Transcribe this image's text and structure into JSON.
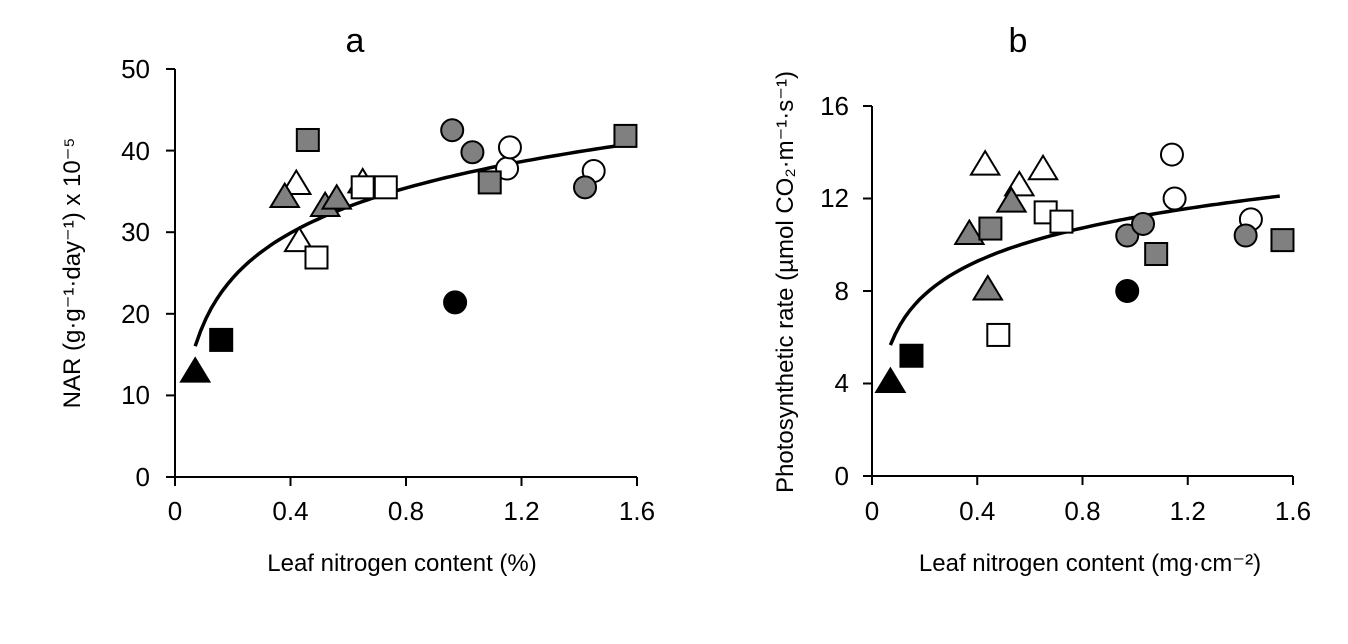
{
  "chart_data": [
    {
      "type": "scatter",
      "title": "a",
      "xlabel": "Leaf nitrogen content (%)",
      "ylabel": "NAR (g·g⁻¹·day⁻¹) x 10⁻⁵",
      "xlim": [
        0,
        1.6
      ],
      "ylim": [
        0,
        50
      ],
      "xticks": [
        "0",
        "0.4",
        "0.8",
        "1.2",
        "1.6"
      ],
      "yticks": [
        "0",
        "10",
        "20",
        "30",
        "40",
        "50"
      ],
      "grid": false,
      "legend": "none",
      "fit_curve": {
        "form": "logarithmic",
        "x_start": 0.07,
        "x_end": 1.55
      },
      "series": [
        {
          "marker": "triangle",
          "fill": "#000000",
          "points": [
            [
              0.07,
              13.0
            ]
          ]
        },
        {
          "marker": "square",
          "fill": "#000000",
          "points": [
            [
              0.16,
              16.8
            ]
          ]
        },
        {
          "marker": "circle",
          "fill": "#000000",
          "points": [
            [
              0.97,
              21.4
            ]
          ]
        },
        {
          "marker": "triangle",
          "fill": "#ffffff",
          "points": [
            [
              0.42,
              36.0
            ],
            [
              0.43,
              29.0
            ],
            [
              0.65,
              36.2
            ]
          ]
        },
        {
          "marker": "square",
          "fill": "#ffffff",
          "points": [
            [
              0.49,
              26.9
            ],
            [
              0.65,
              35.5
            ],
            [
              0.73,
              35.5
            ]
          ]
        },
        {
          "marker": "circle",
          "fill": "#ffffff",
          "points": [
            [
              1.15,
              37.8
            ],
            [
              1.16,
              40.4
            ],
            [
              1.45,
              37.5
            ]
          ]
        },
        {
          "marker": "triangle",
          "fill": "#808080",
          "points": [
            [
              0.38,
              34.4
            ],
            [
              0.52,
              33.3
            ],
            [
              0.56,
              34.2
            ]
          ]
        },
        {
          "marker": "square",
          "fill": "#808080",
          "points": [
            [
              0.46,
              41.3
            ],
            [
              1.09,
              36.1
            ],
            [
              1.56,
              41.8
            ]
          ]
        },
        {
          "marker": "circle",
          "fill": "#808080",
          "points": [
            [
              0.96,
              42.5
            ],
            [
              1.03,
              39.8
            ],
            [
              1.42,
              35.5
            ]
          ]
        }
      ]
    },
    {
      "type": "scatter",
      "title": "b",
      "xlabel": "Leaf nitrogen content (mg·cm⁻²)",
      "ylabel": "Photosynthetic rate (µmol CO₂·m⁻¹·s⁻¹)",
      "xlim": [
        0,
        1.6
      ],
      "ylim": [
        0,
        16
      ],
      "xticks": [
        "0",
        "0.4",
        "0.8",
        "1.2",
        "1.6"
      ],
      "yticks": [
        "0",
        "4",
        "8",
        "12",
        "16"
      ],
      "grid": false,
      "legend": "none",
      "fit_curve": {
        "form": "logarithmic",
        "x_start": 0.07,
        "x_end": 1.55
      },
      "series": [
        {
          "marker": "triangle",
          "fill": "#000000",
          "points": [
            [
              0.07,
              4.1
            ]
          ]
        },
        {
          "marker": "square",
          "fill": "#000000",
          "points": [
            [
              0.15,
              5.2
            ]
          ]
        },
        {
          "marker": "circle",
          "fill": "#000000",
          "points": [
            [
              0.97,
              8.0
            ]
          ]
        },
        {
          "marker": "triangle",
          "fill": "#ffffff",
          "points": [
            [
              0.43,
              13.5
            ],
            [
              0.56,
              12.6
            ],
            [
              0.65,
              13.3
            ]
          ]
        },
        {
          "marker": "square",
          "fill": "#ffffff",
          "points": [
            [
              0.48,
              6.1
            ],
            [
              0.66,
              11.4
            ],
            [
              0.72,
              11.0
            ]
          ]
        },
        {
          "marker": "circle",
          "fill": "#ffffff",
          "points": [
            [
              1.14,
              13.9
            ],
            [
              1.15,
              12.0
            ],
            [
              1.44,
              11.1
            ]
          ]
        },
        {
          "marker": "triangle",
          "fill": "#808080",
          "points": [
            [
              0.37,
              10.5
            ],
            [
              0.44,
              8.1
            ],
            [
              0.53,
              11.9
            ]
          ]
        },
        {
          "marker": "square",
          "fill": "#808080",
          "points": [
            [
              0.45,
              10.7
            ],
            [
              1.08,
              9.6
            ],
            [
              1.56,
              10.2
            ]
          ]
        },
        {
          "marker": "circle",
          "fill": "#808080",
          "points": [
            [
              0.97,
              10.4
            ],
            [
              1.03,
              10.9
            ],
            [
              1.42,
              10.4
            ]
          ]
        }
      ]
    }
  ]
}
